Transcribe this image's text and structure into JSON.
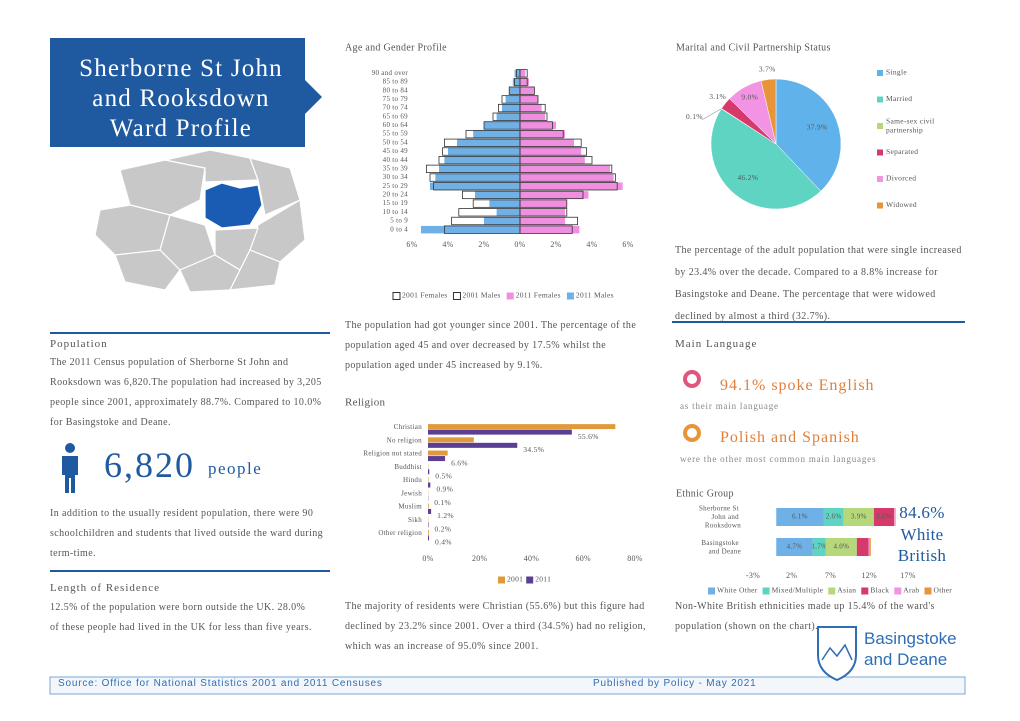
{
  "header": {
    "title_lines": [
      "Sherborne St John",
      "and Rooksdown",
      "Ward Profile"
    ]
  },
  "population": {
    "heading": "Population",
    "paragraph": "The 2011 Census population of Sherborne St John and Rooksdown was 6,820.The population had increased by 3,205 people since 2001, approximately 88.7%. Compared to 10.0% for Basingstoke and Deane.",
    "count": "6,820",
    "count_unit": "people",
    "note": "In addition to the usually resident population, there were 90 schoolchildren and students that lived outside the ward during term-time."
  },
  "length_of_residence": {
    "heading": "Length of Residence",
    "paragraph": "12.5% of the population were born outside the UK. 28.0% of these people had lived in the UK for less than five years."
  },
  "main_language": {
    "heading": "Main Language",
    "items": [
      {
        "headline": "94.1% spoke English",
        "subline": "as their main language"
      },
      {
        "headline": "Polish and Spanish",
        "subline": "were the other most common main languages"
      }
    ]
  },
  "chart_data": [
    {
      "type": "pyramid",
      "title": "Age and Gender Profile",
      "categories": [
        "90 and over",
        "85 to 89",
        "80 to 84",
        "75 to 79",
        "70 to 74",
        "65 to 69",
        "60 to 64",
        "55 to 59",
        "50 to 54",
        "45 to 49",
        "40 to 44",
        "35 to 39",
        "30 to 34",
        "25 to 29",
        "20 to 24",
        "15 to 19",
        "10 to 14",
        "5 to 9",
        "0 to 4"
      ],
      "series": [
        {
          "name": "2001 Females",
          "color": "#ffffff",
          "values": [
            0.4,
            0.4,
            0.8,
            1.0,
            1.4,
            1.5,
            1.8,
            2.4,
            3.4,
            3.7,
            4.0,
            5.1,
            5.3,
            5.4,
            3.5,
            2.6,
            2.6,
            3.2,
            2.9
          ]
        },
        {
          "name": "2001 Males",
          "color": "#ffffff",
          "values": [
            0.2,
            0.3,
            0.6,
            1.0,
            1.2,
            1.5,
            2.0,
            3.0,
            4.2,
            4.3,
            4.5,
            5.2,
            5.0,
            4.8,
            3.2,
            2.6,
            3.4,
            3.8,
            4.2
          ]
        },
        {
          "name": "2011 Females",
          "color": "#f08ee0",
          "values": [
            0.3,
            0.5,
            0.8,
            1.0,
            1.2,
            1.4,
            2.0,
            2.5,
            3.0,
            3.4,
            3.6,
            5.0,
            5.2,
            5.7,
            3.8,
            2.6,
            2.5,
            2.5,
            3.3
          ]
        },
        {
          "name": "2011 Males",
          "color": "#6fb0e6",
          "values": [
            0.3,
            0.4,
            0.6,
            0.8,
            1.0,
            1.3,
            2.0,
            2.6,
            3.5,
            4.0,
            4.2,
            4.5,
            4.7,
            5.0,
            2.5,
            1.7,
            1.3,
            2.0,
            5.5
          ]
        }
      ],
      "xlim": [
        -6,
        6
      ],
      "xticks": [
        {
          "value": -6,
          "label": "6%"
        },
        {
          "value": -4,
          "label": "4%"
        },
        {
          "value": -2,
          "label": "2%"
        },
        {
          "value": 0,
          "label": "0%"
        },
        {
          "value": 2,
          "label": "2%"
        },
        {
          "value": 4,
          "label": "4%"
        },
        {
          "value": 6,
          "label": "6%"
        }
      ],
      "caption": "The population had got younger since 2001. The percentage of the population aged 45 and over decreased by 17.5% whilst the population aged under 45 increased by 9.1%."
    },
    {
      "type": "pie",
      "title": "Marital and Civil Partnership Status",
      "categories": [
        "Single",
        "Married",
        "Same-sex civil partnership",
        "Separated",
        "Divorced",
        "Widowed"
      ],
      "values": [
        37.9,
        46.2,
        0.1,
        3.1,
        9.0,
        3.7
      ],
      "value_labels": [
        "37.9%",
        "46.2%",
        "0.1%",
        "3.1%",
        "9.0%",
        "3.7%"
      ],
      "colors": [
        "#5fb3ea",
        "#5fd4c2",
        "#b6d77a",
        "#d63a6a",
        "#f293e4",
        "#e8953a"
      ],
      "caption": "The percentage of the adult population that were single increased by 23.4% over the decade. Compared to a 8.8% increase for Basingstoke and Deane. The percentage that were widowed declined by almost a third (32.7%)."
    },
    {
      "type": "bar",
      "title": "Religion",
      "categories": [
        "Christian",
        "No religion",
        "Religion not stated",
        "Buddhist",
        "Hindu",
        "Jewish",
        "Muslim",
        "Sikh",
        "Other religion"
      ],
      "series": [
        {
          "name": "2001",
          "color": "#e09a3c",
          "values": [
            72.4,
            17.7,
            7.6,
            0.1,
            0.2,
            0.1,
            0.3,
            0.1,
            0.3
          ]
        },
        {
          "name": "2011",
          "color": "#5b3f95",
          "values": [
            55.6,
            34.5,
            6.6,
            0.5,
            0.9,
            0.1,
            1.2,
            0.2,
            0.4
          ],
          "value_labels": [
            "55.6%",
            "34.5%",
            "6.6%",
            "0.5%",
            "0.9%",
            "0.1%",
            "1.2%",
            "0.2%",
            "0.4%"
          ]
        }
      ],
      "xlim": [
        0,
        80
      ],
      "xticks": [
        {
          "value": 0,
          "label": "0%"
        },
        {
          "value": 20,
          "label": "20%"
        },
        {
          "value": 40,
          "label": "40%"
        },
        {
          "value": 60,
          "label": "60%"
        },
        {
          "value": 80,
          "label": "80%"
        }
      ],
      "caption": "The majority of residents were Christian (55.6%) but this figure had declined by 23.2% since 2001. Over a third (34.5%) had no religion, which was an increase of 95.0% since 2001."
    },
    {
      "type": "stacked",
      "title": "Ethnic Group",
      "categories": [
        "Sherborne St John and Rooksdown",
        "Basingstoke and Deane"
      ],
      "series": [
        {
          "name": "White Other",
          "color": "#6fb0e6",
          "values": [
            6.1,
            4.7
          ],
          "value_labels": [
            "6.1%",
            "4.7%"
          ]
        },
        {
          "name": "Mixed/Multiple",
          "color": "#5fd4c2",
          "values": [
            2.6,
            1.7
          ],
          "value_labels": [
            "2.6%",
            "1.7%"
          ]
        },
        {
          "name": "Asian",
          "color": "#b6d77a",
          "values": [
            3.9,
            4.0
          ],
          "value_labels": [
            "3.9%",
            "4.0%"
          ]
        },
        {
          "name": "Black",
          "color": "#d63a6a",
          "values": [
            2.6,
            1.5
          ],
          "value_labels": [
            "2.6%",
            null
          ]
        },
        {
          "name": "Arab",
          "color": "#f293e4",
          "values": [
            0.1,
            0.1
          ]
        },
        {
          "name": "Other",
          "color": "#e8953a",
          "values": [
            0.1,
            0.2
          ]
        }
      ],
      "xlim": [
        -3,
        17
      ],
      "xticks": [
        {
          "value": -3,
          "label": "-3%"
        },
        {
          "value": 2,
          "label": "2%"
        },
        {
          "value": 7,
          "label": "7%"
        },
        {
          "value": 12,
          "label": "12%"
        },
        {
          "value": 17,
          "label": "17%"
        }
      ],
      "callout_lines": [
        "84.6%",
        "White",
        "British"
      ],
      "caption": "Non-White British ethnicities made up 15.4% of the ward's population (shown on the chart)."
    }
  ],
  "footer": {
    "source": "Source: Office for National Statistics 2001 and 2011 Censuses",
    "published": "Published by Policy - May 2021"
  },
  "logo": {
    "lines": [
      "Basingstoke",
      "and Deane"
    ]
  }
}
